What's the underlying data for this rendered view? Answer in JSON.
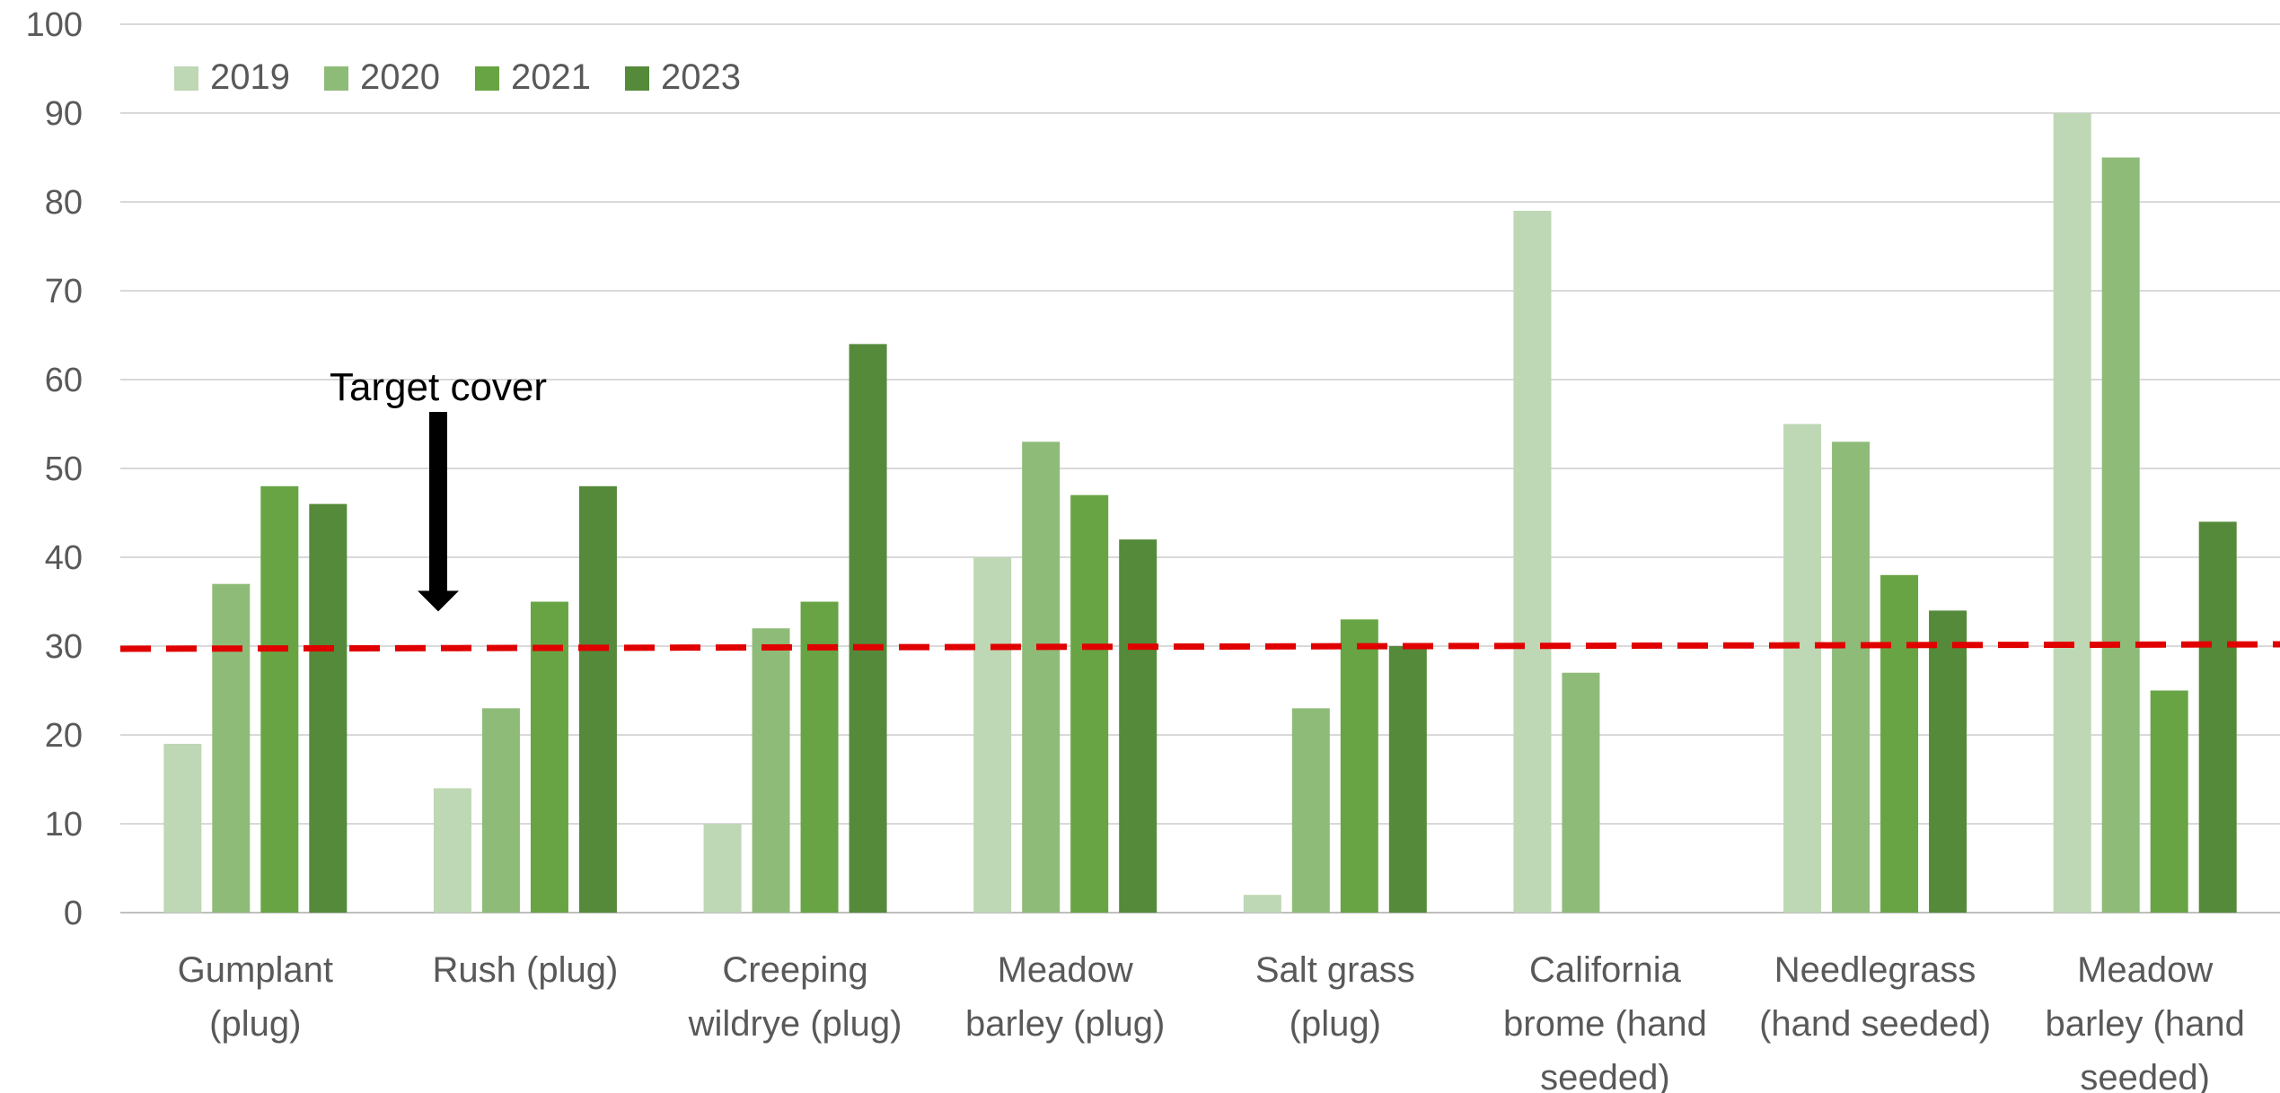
{
  "chart_data": {
    "type": "bar",
    "title": "",
    "xlabel": "",
    "ylabel": "",
    "ylim": [
      0,
      100
    ],
    "yticks": [
      0,
      10,
      20,
      30,
      40,
      50,
      60,
      70,
      80,
      90,
      100
    ],
    "grid": true,
    "legend_position": "top-left",
    "categories": [
      [
        "Gumplant",
        "(plug)"
      ],
      [
        "Rush (plug)"
      ],
      [
        "Creeping",
        "wildrye (plug)"
      ],
      [
        "Meadow",
        "barley (plug)"
      ],
      [
        "Salt grass",
        "(plug)"
      ],
      [
        "California",
        "brome (hand",
        "seeded)"
      ],
      [
        "Needlegrass",
        "(hand seeded)"
      ],
      [
        "Meadow",
        "barley (hand",
        "seeded)"
      ]
    ],
    "series": [
      {
        "name": "2019",
        "color": "#bed7b4",
        "values": [
          19,
          14,
          10,
          40,
          2,
          79,
          55,
          90
        ]
      },
      {
        "name": "2020",
        "color": "#8fbb78",
        "values": [
          37,
          23,
          32,
          53,
          23,
          27,
          53,
          85
        ]
      },
      {
        "name": "2021",
        "color": "#68a444",
        "values": [
          48,
          35,
          35,
          47,
          33,
          null,
          38,
          25
        ]
      },
      {
        "name": "2023",
        "color": "#558a3a",
        "values": [
          46,
          48,
          64,
          42,
          30,
          null,
          34,
          44
        ]
      }
    ],
    "reference_line": {
      "value_start": 29.7,
      "value_end": 30.2,
      "color": "#e00000",
      "style": "dashed"
    },
    "annotation": {
      "text": "Target cover",
      "points_to_value": 34,
      "arrow_color": "#000000"
    }
  }
}
